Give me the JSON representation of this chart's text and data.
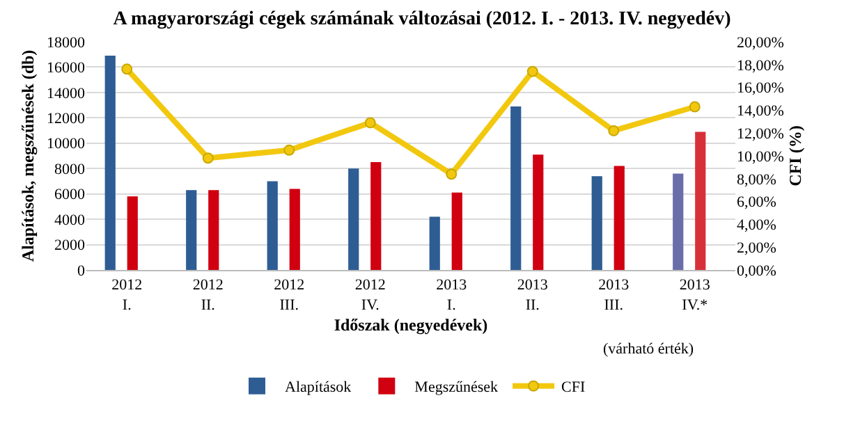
{
  "chart_data": {
    "type": "bar",
    "title": "A magyarországi cégek számának változásai (2012. I. - 2013. IV. negyedév)",
    "xlabel": "Időszak (negyedévek)",
    "ylabel": "Alapítások, megszűnések (db)",
    "y2label": "CFI (%)",
    "categories": [
      "2012\nI.",
      "2012\nII.",
      "2012\nIII.",
      "2012\nIV.",
      "2013\nI.",
      "2013\nII.",
      "2013\nIII.",
      "2013\nIV.*"
    ],
    "series": [
      {
        "name": "Alapítások",
        "color": "#2e5d94",
        "colors": [
          "#2e5d94",
          "#2e5d94",
          "#2e5d94",
          "#2e5d94",
          "#2e5d94",
          "#2e5d94",
          "#2e5d94",
          "#6a6ea8"
        ],
        "values": [
          16900,
          6300,
          7000,
          8000,
          4200,
          12900,
          7400,
          7600
        ]
      },
      {
        "name": "Megszűnések",
        "color": "#d00010",
        "colors": [
          "#d00010",
          "#d00010",
          "#d00010",
          "#d00010",
          "#d00010",
          "#d00010",
          "#d00010",
          "#d83038"
        ],
        "values": [
          5800,
          6300,
          6400,
          8500,
          6100,
          9100,
          8200,
          10900
        ]
      },
      {
        "name": "CFI",
        "type": "line",
        "axis": "y2",
        "color": "#f2c80f",
        "marker": "circle",
        "values": [
          17.6,
          9.8,
          10.5,
          12.9,
          8.4,
          17.4,
          12.2,
          14.3
        ]
      }
    ],
    "ylim": [
      0,
      18000
    ],
    "yticks": [
      0,
      2000,
      4000,
      6000,
      8000,
      10000,
      12000,
      14000,
      16000,
      18000
    ],
    "y2lim": [
      0,
      20
    ],
    "y2ticks": [
      {
        "value": 0,
        "label": "0,00%"
      },
      {
        "value": 2,
        "label": "2,00%"
      },
      {
        "value": 4,
        "label": "4,00%"
      },
      {
        "value": 6,
        "label": "6,00%"
      },
      {
        "value": 8,
        "label": "8,00%"
      },
      {
        "value": 10,
        "label": "10,00%"
      },
      {
        "value": 12,
        "label": "12,00%"
      },
      {
        "value": 14,
        "label": "14,00%"
      },
      {
        "value": 16,
        "label": "16,00%"
      },
      {
        "value": 18,
        "label": "18,00%"
      },
      {
        "value": 20,
        "label": "20,00%"
      }
    ],
    "annotations": [
      "(várható érték)"
    ],
    "grid": "y",
    "legend": "bottom"
  }
}
